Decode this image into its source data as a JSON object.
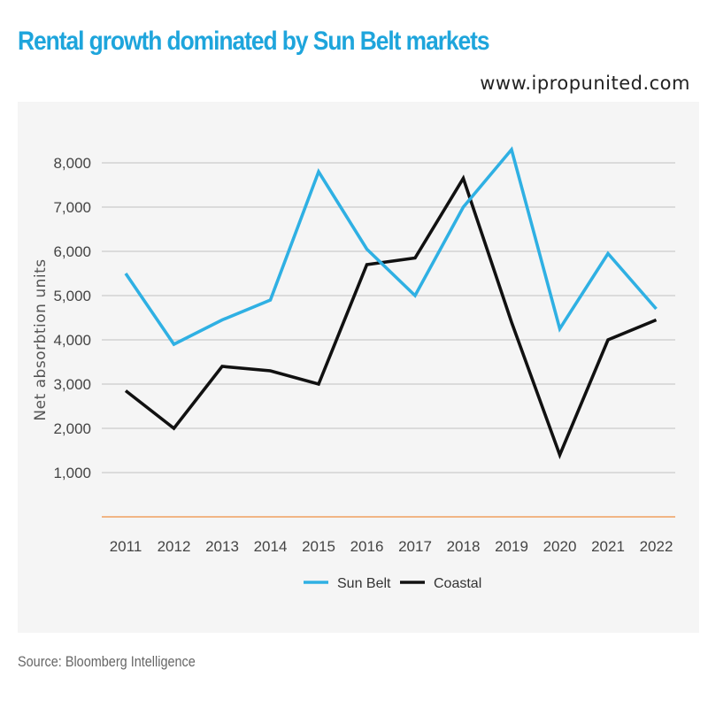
{
  "header": {
    "title": "Rental growth dominated by Sun Belt markets",
    "watermark": "www.ipropunited.com"
  },
  "footer": {
    "source": "Source: Bloomberg Intelligence"
  },
  "colors": {
    "title": "#1ea5dc",
    "sun_belt": "#2fb0e3",
    "coastal": "#111111",
    "baseline": "#f0a060",
    "grid": "#cccccc",
    "panel": "#f5f5f5"
  },
  "chart_data": {
    "type": "line",
    "title": "Rental growth dominated by Sun Belt markets",
    "ylabel": "Net absorbtion units",
    "xlabel": "",
    "categories": [
      "2011",
      "2012",
      "2013",
      "2014",
      "2015",
      "2016",
      "2017",
      "2018",
      "2019",
      "2020",
      "2021",
      "2022"
    ],
    "yticks": [
      1000,
      2000,
      3000,
      4000,
      5000,
      6000,
      7000,
      8000
    ],
    "ytick_labels": [
      "1,000",
      "2,000",
      "3,000",
      "4,000",
      "5,000",
      "6,000",
      "7,000",
      "8,000"
    ],
    "ylim": [
      0,
      8000
    ],
    "grid": true,
    "legend_position": "bottom",
    "series": [
      {
        "name": "Sun Belt",
        "color": "#2fb0e3",
        "values": [
          5500,
          3900,
          4450,
          4900,
          7800,
          6050,
          5000,
          7000,
          8300,
          4250,
          5950,
          4700
        ]
      },
      {
        "name": "Coastal",
        "color": "#111111",
        "values": [
          2850,
          2000,
          3400,
          3300,
          3000,
          5700,
          5850,
          7650,
          4400,
          1400,
          4000,
          4450
        ]
      }
    ]
  }
}
